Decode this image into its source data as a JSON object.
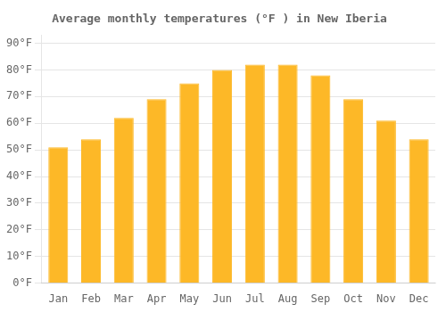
{
  "chart_data": {
    "type": "bar",
    "title": "Average monthly temperatures (°F ) in New Iberia",
    "categories": [
      "Jan",
      "Feb",
      "Mar",
      "Apr",
      "May",
      "Jun",
      "Jul",
      "Aug",
      "Sep",
      "Oct",
      "Nov",
      "Dec"
    ],
    "values": [
      51,
      54,
      62,
      69,
      75,
      80,
      82,
      82,
      78,
      69,
      61,
      54
    ],
    "color": "#FDB827",
    "ylim": [
      0,
      93
    ],
    "yticks": [
      {
        "value": 0,
        "label": "0°F"
      },
      {
        "value": 10,
        "label": "10°F"
      },
      {
        "value": 20,
        "label": "20°F"
      },
      {
        "value": 30,
        "label": "30°F"
      },
      {
        "value": 40,
        "label": "40°F"
      },
      {
        "value": 50,
        "label": "50°F"
      },
      {
        "value": 60,
        "label": "60°F"
      },
      {
        "value": 70,
        "label": "70°F"
      },
      {
        "value": 80,
        "label": "80°F"
      },
      {
        "value": 90,
        "label": "90°F"
      }
    ],
    "grid": true
  }
}
